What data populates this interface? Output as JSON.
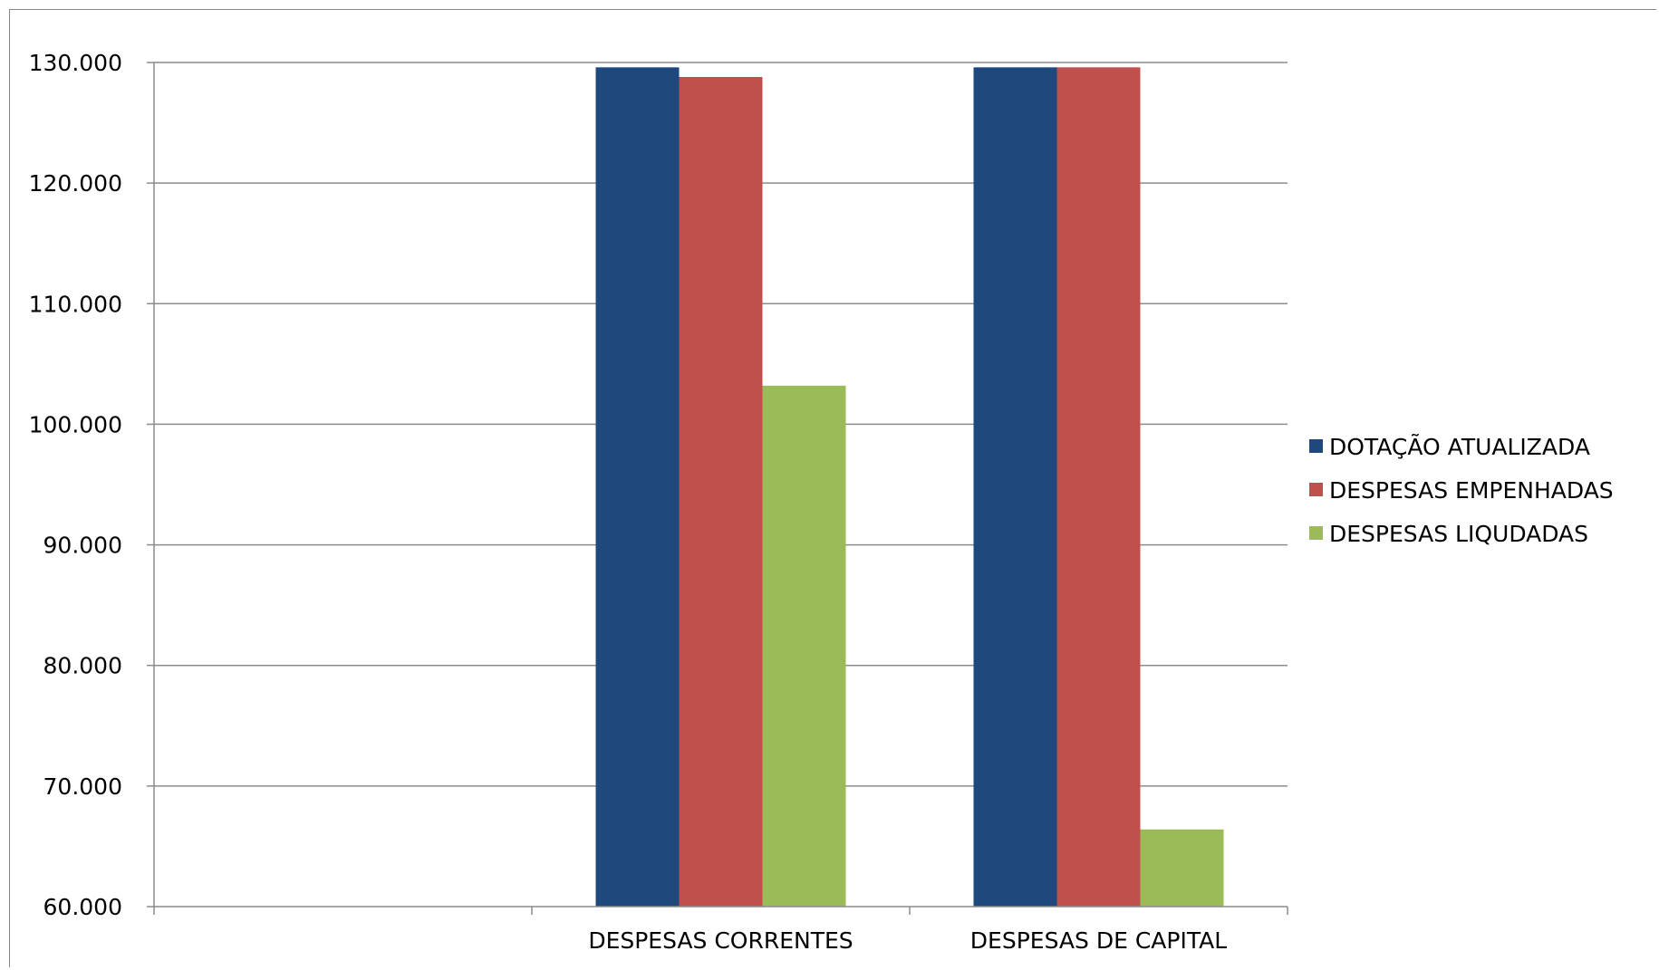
{
  "chart_data": {
    "type": "bar",
    "categories": [
      "",
      "DESPESAS CORRENTES",
      "DESPESAS DE CAPITAL"
    ],
    "series": [
      {
        "name": "DOTAÇÃO ATUALIZADA",
        "color": "#1f497d",
        "values": [
          null,
          129600,
          129600
        ]
      },
      {
        "name": "DESPESAS EMPENHADAS",
        "color": "#c0504d",
        "values": [
          null,
          128800,
          129600
        ]
      },
      {
        "name": "DESPESAS LIQUDADAS",
        "color": "#9bbb59",
        "values": [
          null,
          103200,
          66400
        ]
      }
    ],
    "ylim": [
      60000,
      130000
    ],
    "yticks": [
      {
        "value": 130000,
        "label": "130.000"
      },
      {
        "value": 120000,
        "label": "120.000"
      },
      {
        "value": 110000,
        "label": "110.000"
      },
      {
        "value": 100000,
        "label": "100.000"
      },
      {
        "value": 90000,
        "label": "90.000"
      },
      {
        "value": 80000,
        "label": "80.000"
      },
      {
        "value": 70000,
        "label": "70.000"
      },
      {
        "value": 60000,
        "label": "60.000"
      }
    ],
    "grid": true,
    "legend_position": "right",
    "title": "",
    "xlabel": "",
    "ylabel": ""
  }
}
